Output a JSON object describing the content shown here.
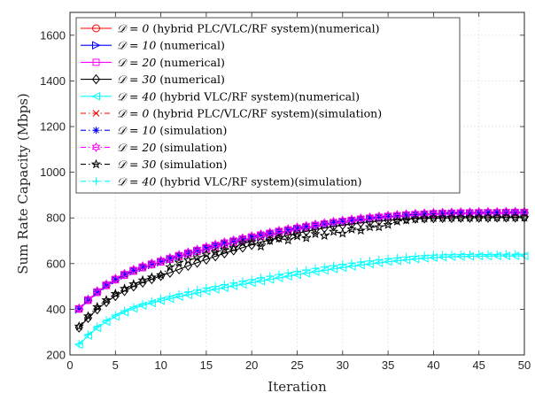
{
  "chart_data": {
    "type": "line",
    "xlabel": "Iteration",
    "ylabel": "Sum Rate Capacity (Mbps)",
    "xlim": [
      0,
      50
    ],
    "ylim": [
      200,
      1700
    ],
    "xticks": [
      0,
      5,
      10,
      15,
      20,
      25,
      30,
      35,
      40,
      45,
      50
    ],
    "yticks": [
      200,
      400,
      600,
      800,
      1000,
      1200,
      1400,
      1600
    ],
    "grid": true,
    "legend_position": "top-left",
    "series": [
      {
        "name": "D = 0 (hybrid PLC/VLC/RF system)(numerical)",
        "legend_math": "𝒟 = 0",
        "legend_text": "(hybrid PLC/VLC/RF system)(numerical)",
        "color": "#ff0000",
        "line": "solid",
        "marker": "circle",
        "values": [
          402,
          440,
          475,
          505,
          530,
          550,
          568,
          583,
          596,
          608,
          620,
          632,
          643,
          654,
          665,
          675,
          685,
          694,
          703,
          712,
          720,
          728,
          736,
          744,
          751,
          758,
          765,
          771,
          777,
          782,
          787,
          792,
          797,
          801,
          805,
          808,
          811,
          814,
          816,
          818,
          819,
          820,
          821,
          822,
          822,
          823,
          823,
          823,
          824,
          824
        ]
      },
      {
        "name": "D = 10 (numerical)",
        "legend_math": "𝒟 = 10",
        "legend_text": "(numerical)",
        "color": "#0000ff",
        "line": "solid",
        "marker": "triangle-right",
        "values": [
          400,
          438,
          472,
          502,
          527,
          548,
          566,
          581,
          594,
          606,
          618,
          630,
          641,
          652,
          663,
          673,
          683,
          692,
          701,
          710,
          718,
          726,
          734,
          742,
          749,
          756,
          763,
          769,
          775,
          780,
          785,
          790,
          795,
          799,
          803,
          806,
          809,
          812,
          814,
          816,
          817,
          818,
          819,
          820,
          820,
          821,
          821,
          821,
          822,
          822
        ]
      },
      {
        "name": "D = 20 (numerical)",
        "legend_math": "𝒟 = 20",
        "legend_text": "(numerical)",
        "color": "#ff00ff",
        "line": "solid",
        "marker": "square",
        "values": [
          401,
          439,
          474,
          504,
          529,
          549,
          567,
          582,
          595,
          607,
          619,
          631,
          642,
          653,
          664,
          674,
          684,
          693,
          702,
          711,
          719,
          727,
          735,
          743,
          750,
          757,
          764,
          770,
          776,
          781,
          786,
          791,
          796,
          800,
          804,
          807,
          810,
          813,
          815,
          817,
          818,
          819,
          820,
          821,
          821,
          822,
          822,
          822,
          823,
          823
        ]
      },
      {
        "name": "D = 30 (numerical)",
        "legend_math": "𝒟 = 30",
        "legend_text": "(numerical)",
        "color": "#000000",
        "line": "solid",
        "marker": "diamond",
        "values": [
          320,
          362,
          400,
          432,
          458,
          480,
          500,
          517,
          532,
          546,
          560,
          575,
          590,
          604,
          618,
          632,
          645,
          658,
          670,
          682,
          694,
          704,
          714,
          724,
          733,
          741,
          749,
          756,
          763,
          769,
          774,
          779,
          783,
          787,
          790,
          793,
          795,
          797,
          798,
          799,
          800,
          800,
          801,
          801,
          801,
          801,
          802,
          802,
          802,
          802
        ]
      },
      {
        "name": "D = 40 (hybrid VLC/RF system)(numerical)",
        "legend_math": "𝒟 = 40",
        "legend_text": "(hybrid VLC/RF system)(numerical)",
        "color": "#00ffff",
        "line": "solid",
        "marker": "triangle-left",
        "values": [
          245,
          285,
          318,
          345,
          368,
          387,
          403,
          416,
          427,
          437,
          446,
          455,
          463,
          471,
          479,
          487,
          494,
          502,
          509,
          516,
          523,
          530,
          537,
          544,
          551,
          557,
          564,
          570,
          576,
          582,
          588,
          593,
          598,
          603,
          608,
          612,
          616,
          620,
          623,
          626,
          628,
          630,
          631,
          632,
          633,
          633,
          634,
          634,
          634,
          634
        ]
      },
      {
        "name": "D = 0 (hybrid PLC/VLC/RF system)(simulation)",
        "legend_math": "𝒟 = 0",
        "legend_text": "(hybrid PLC/VLC/RF system)(simulation)",
        "color": "#ff0000",
        "line": "dashdot",
        "marker": "x",
        "values": [
          404,
          443,
          478,
          508,
          533,
          554,
          572,
          587,
          600,
          612,
          624,
          637,
          648,
          660,
          672,
          682,
          692,
          701,
          710,
          719,
          727,
          735,
          743,
          750,
          757,
          764,
          770,
          776,
          782,
          787,
          792,
          797,
          801,
          805,
          809,
          812,
          815,
          817,
          819,
          821,
          822,
          823,
          824,
          824,
          825,
          825,
          825,
          826,
          826,
          826
        ]
      },
      {
        "name": "D = 10 (simulation)",
        "legend_math": "𝒟 = 10",
        "legend_text": "(simulation)",
        "color": "#0000ff",
        "line": "dashdot",
        "marker": "star",
        "values": [
          403,
          441,
          476,
          506,
          531,
          552,
          570,
          585,
          598,
          610,
          622,
          635,
          646,
          658,
          670,
          680,
          690,
          699,
          708,
          717,
          725,
          733,
          741,
          748,
          755,
          762,
          768,
          774,
          780,
          785,
          790,
          795,
          799,
          803,
          807,
          810,
          813,
          815,
          817,
          819,
          820,
          821,
          822,
          822,
          823,
          823,
          823,
          824,
          824,
          824
        ]
      },
      {
        "name": "D = 20 (simulation)",
        "legend_math": "𝒟 = 20",
        "legend_text": "(simulation)",
        "color": "#ff00ff",
        "line": "dashdot",
        "marker": "hexagram",
        "values": [
          405,
          444,
          480,
          510,
          535,
          556,
          574,
          589,
          602,
          614,
          626,
          639,
          650,
          662,
          674,
          684,
          694,
          703,
          712,
          721,
          729,
          737,
          745,
          752,
          759,
          766,
          772,
          778,
          784,
          789,
          794,
          799,
          803,
          807,
          811,
          814,
          817,
          819,
          821,
          823,
          824,
          825,
          826,
          826,
          827,
          827,
          827,
          828,
          828,
          828
        ]
      },
      {
        "name": "D = 30 (simulation)",
        "legend_math": "𝒟 = 30",
        "legend_text": "(simulation)",
        "color": "#000000",
        "line": "dashdot",
        "marker": "pentagram",
        "values": [
          325,
          370,
          410,
          440,
          468,
          490,
          510,
          527,
          540,
          550,
          585,
          605,
          615,
          625,
          640,
          650,
          660,
          668,
          690,
          695,
          675,
          700,
          710,
          702,
          720,
          712,
          730,
          722,
          740,
          732,
          750,
          745,
          760,
          760,
          770,
          785,
          790,
          795,
          798,
          800,
          800,
          801,
          801,
          801,
          801,
          802,
          802,
          802,
          802,
          802
        ]
      },
      {
        "name": "D = 40 (hybrid VLC/RF system)(simulation)",
        "legend_math": "𝒟 = 40",
        "legend_text": "(hybrid VLC/RF system)(simulation)",
        "color": "#00ffff",
        "line": "dashdot",
        "marker": "plus",
        "values": [
          248,
          290,
          325,
          352,
          375,
          394,
          410,
          424,
          436,
          447,
          457,
          467,
          476,
          484,
          493,
          500,
          508,
          515,
          523,
          530,
          538,
          545,
          552,
          559,
          566,
          572,
          579,
          585,
          591,
          597,
          602,
          607,
          612,
          617,
          621,
          625,
          629,
          632,
          635,
          637,
          638,
          639,
          640,
          640,
          640,
          640,
          640,
          641,
          641,
          641
        ]
      }
    ]
  }
}
